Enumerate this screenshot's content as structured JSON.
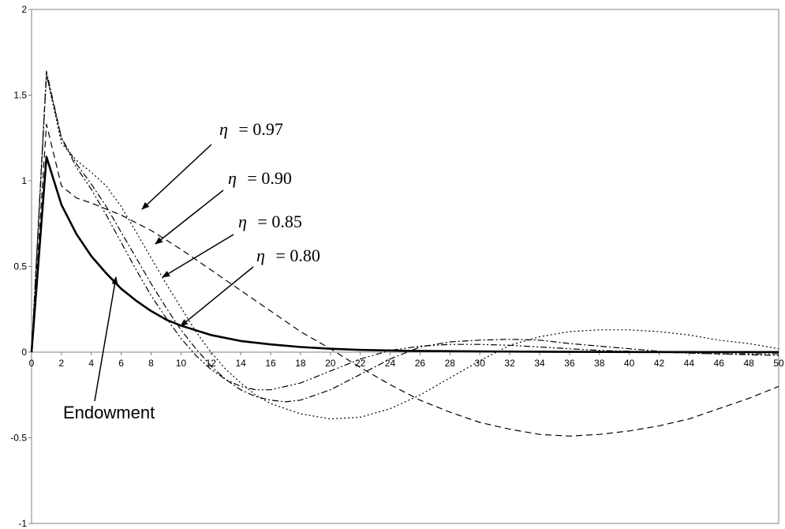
{
  "chart_data": {
    "type": "line",
    "title": "",
    "xlabel": "",
    "ylabel": "",
    "xlim": [
      0,
      50
    ],
    "ylim": [
      -1,
      2
    ],
    "x_ticks": [
      0,
      2,
      4,
      6,
      8,
      10,
      12,
      14,
      16,
      18,
      20,
      22,
      24,
      26,
      28,
      30,
      32,
      34,
      36,
      38,
      40,
      42,
      44,
      46,
      48,
      50
    ],
    "y_ticks": [
      -1,
      -0.5,
      0,
      0.5,
      1,
      1.5,
      2
    ],
    "y_tick_labels": [
      "-1",
      "-0.5",
      "0",
      "0.5",
      "1",
      "1.5",
      "2"
    ],
    "grid": false,
    "series": [
      {
        "name": "Endowment",
        "style": "solid",
        "x": [
          0,
          1,
          2,
          3,
          4,
          5,
          6,
          7,
          8,
          9,
          10,
          12,
          14,
          16,
          18,
          20,
          22,
          25,
          30,
          35,
          40,
          45,
          50
        ],
        "values": [
          0,
          1.14,
          0.86,
          0.69,
          0.56,
          0.46,
          0.37,
          0.3,
          0.24,
          0.19,
          0.155,
          0.1,
          0.065,
          0.045,
          0.03,
          0.02,
          0.013,
          0.008,
          0.004,
          0.002,
          0.001,
          0.0005,
          0.0003
        ]
      },
      {
        "name": "η = 0.97",
        "style": "dash",
        "x": [
          0,
          1,
          2,
          3,
          4,
          6,
          8,
          10,
          12,
          14,
          16,
          18,
          20,
          22,
          24,
          26,
          28,
          30,
          32,
          34,
          36,
          38,
          40,
          42,
          44,
          46,
          48,
          50
        ],
        "values": [
          0,
          1.33,
          0.97,
          0.9,
          0.87,
          0.8,
          0.71,
          0.6,
          0.48,
          0.36,
          0.24,
          0.12,
          0.02,
          -0.09,
          -0.19,
          -0.28,
          -0.35,
          -0.41,
          -0.45,
          -0.48,
          -0.49,
          -0.48,
          -0.46,
          -0.43,
          -0.39,
          -0.33,
          -0.27,
          -0.2
        ]
      },
      {
        "name": "η = 0.90",
        "style": "dot",
        "x": [
          0,
          1,
          2,
          3,
          4,
          5,
          6,
          7,
          8,
          9,
          10,
          11,
          12,
          13,
          14,
          15,
          16,
          18,
          20,
          22,
          24,
          26,
          28,
          30,
          32,
          34,
          36,
          38,
          40,
          42,
          44,
          46,
          48,
          50
        ],
        "values": [
          0,
          1.62,
          1.22,
          1.12,
          1.05,
          0.97,
          0.85,
          0.7,
          0.55,
          0.4,
          0.26,
          0.12,
          0.0,
          -0.1,
          -0.18,
          -0.25,
          -0.3,
          -0.36,
          -0.39,
          -0.38,
          -0.33,
          -0.25,
          -0.15,
          -0.05,
          0.04,
          0.09,
          0.12,
          0.13,
          0.13,
          0.12,
          0.1,
          0.07,
          0.05,
          0.02
        ]
      },
      {
        "name": "η = 0.85",
        "style": "dashdot",
        "x": [
          0,
          1,
          2,
          3,
          4,
          5,
          6,
          7,
          8,
          9,
          10,
          11,
          12,
          13,
          14,
          15,
          16,
          17,
          18,
          20,
          22,
          24,
          26,
          28,
          30,
          32,
          34,
          36,
          38,
          40,
          42,
          44,
          46,
          48,
          50
        ],
        "values": [
          0,
          1.64,
          1.25,
          1.1,
          0.98,
          0.85,
          0.7,
          0.55,
          0.4,
          0.26,
          0.13,
          0.02,
          -0.08,
          -0.16,
          -0.22,
          -0.26,
          -0.28,
          -0.29,
          -0.28,
          -0.22,
          -0.13,
          -0.04,
          0.03,
          0.06,
          0.07,
          0.075,
          0.07,
          0.05,
          0.035,
          0.02,
          0.005,
          -0.005,
          -0.01,
          -0.015,
          -0.02
        ]
      },
      {
        "name": "η = 0.80",
        "style": "dashdotdot",
        "x": [
          0,
          1,
          2,
          3,
          4,
          5,
          6,
          7,
          8,
          9,
          10,
          11,
          12,
          13,
          14,
          15,
          16,
          18,
          20,
          22,
          24,
          26,
          28,
          30,
          32,
          34,
          36,
          38,
          40,
          42,
          44,
          46,
          48,
          50
        ],
        "values": [
          0,
          1.62,
          1.25,
          1.08,
          0.95,
          0.8,
          0.64,
          0.48,
          0.33,
          0.2,
          0.08,
          -0.02,
          -0.1,
          -0.16,
          -0.2,
          -0.22,
          -0.22,
          -0.18,
          -0.11,
          -0.04,
          0.01,
          0.035,
          0.045,
          0.045,
          0.04,
          0.03,
          0.02,
          0.01,
          0.005,
          0.0,
          -0.005,
          -0.01,
          -0.01,
          -0.01
        ]
      }
    ],
    "annotations": {
      "eta_97": {
        "symbol": "η",
        "text": "= 0.97"
      },
      "eta_90": {
        "symbol": "η",
        "text": "= 0.90"
      },
      "eta_85": {
        "symbol": "η",
        "text": "= 0.85"
      },
      "eta_80": {
        "symbol": "η",
        "text": "= 0.80"
      },
      "endowment": "Endowment"
    }
  }
}
